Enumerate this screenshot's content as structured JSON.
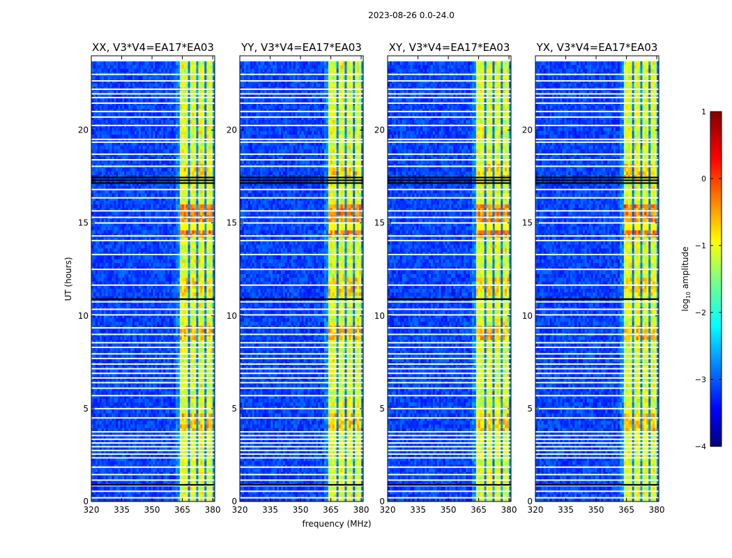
{
  "chart_data": {
    "type": "heatmap",
    "title": "2023-08-26 0.0-24.0",
    "xlabel": "frequency (MHz)",
    "ylabel": "UT (hours)",
    "xlim": [
      320,
      381
    ],
    "ylim": [
      0,
      24
    ],
    "x_ticks": [
      320,
      335,
      350,
      365,
      380
    ],
    "y_ticks": [
      0,
      5,
      10,
      15,
      20
    ],
    "panels": [
      {
        "title": "XX, V3*V4=EA17*EA03"
      },
      {
        "title": "YY, V3*V4=EA17*EA03"
      },
      {
        "title": "XY, V3*V4=EA17*EA03"
      },
      {
        "title": "YX, V3*V4=EA17*EA03"
      }
    ],
    "colorbar": {
      "label": "log10 amplitude",
      "label_main": "log",
      "label_sub": "10",
      "label_rest": " amplitude",
      "range": [
        -4,
        1
      ],
      "ticks": [
        1,
        0,
        -1,
        -2,
        -3,
        -4
      ],
      "colormap": "jet"
    },
    "rfi_bands_mhz": [
      [
        364,
        368
      ],
      [
        369,
        372
      ],
      [
        373,
        376
      ],
      [
        377,
        380
      ]
    ],
    "rfi_start_mhz": 362,
    "gap_rows_ut": [
      0.2,
      0.55,
      0.85,
      1.15,
      1.45,
      1.85,
      2.35,
      2.55,
      2.75,
      2.95,
      3.15,
      3.35,
      3.55,
      3.75,
      4.5,
      5.0,
      5.7,
      6.1,
      6.4,
      6.65,
      6.9,
      7.15,
      7.4,
      7.7,
      7.95,
      8.3,
      8.55,
      9.0,
      9.35,
      10.05,
      10.35,
      10.75,
      11.65,
      12.5,
      13.3,
      14.05,
      14.3,
      15.0,
      15.3,
      15.65,
      16.35,
      16.8,
      18.05,
      18.4,
      18.7,
      19.35,
      19.5,
      20.25,
      20.7,
      21.0,
      21.45,
      21.75,
      21.95,
      22.2,
      22.65,
      23.0
    ],
    "dark_rows_ut": [
      0.9,
      10.9,
      17.15,
      17.3,
      17.45
    ]
  }
}
